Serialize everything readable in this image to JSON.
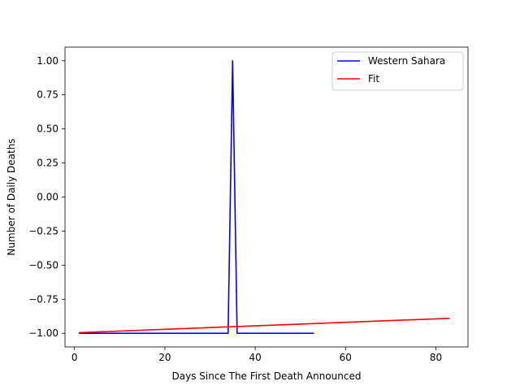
{
  "chart_data": {
    "type": "line",
    "title": "",
    "xlabel": "Days Since The First Death Announced",
    "ylabel": "Number of Daily Deaths",
    "xlim": [
      -2.1,
      87.1
    ],
    "ylim": [
      -1.1,
      1.1
    ],
    "xticks": [
      0,
      20,
      40,
      60,
      80
    ],
    "yticks": [
      -1.0,
      -0.75,
      -0.5,
      -0.25,
      0.0,
      0.25,
      0.5,
      0.75,
      1.0
    ],
    "ytick_labels": [
      "−1.00",
      "−0.75",
      "−0.50",
      "−0.25",
      "0.00",
      "0.25",
      "0.50",
      "0.75",
      "1.00"
    ],
    "xtick_labels": [
      "0",
      "20",
      "40",
      "60",
      "80"
    ],
    "grid": false,
    "legend_position": "top-right",
    "series": [
      {
        "name": "Western Sahara",
        "color": "#0000ff",
        "x": [
          1,
          34,
          35,
          36,
          53
        ],
        "y": [
          -1,
          -1,
          1,
          -1,
          -1
        ]
      },
      {
        "name": "Fit",
        "color": "#ff0000",
        "x": [
          1,
          83
        ],
        "y": [
          -0.995,
          -0.89
        ]
      }
    ]
  }
}
